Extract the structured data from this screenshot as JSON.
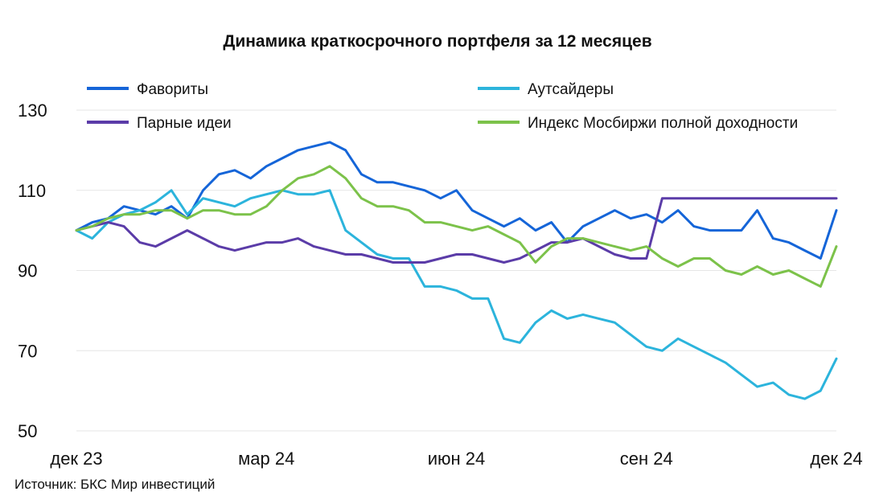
{
  "title": "Динамика краткосрочного портфеля за 12 месяцев",
  "source": "Источник: БКС Мир инвестиций",
  "colors": {
    "favorites": "#1565d8",
    "outsiders": "#2cb4dc",
    "pairs": "#5b3ca8",
    "index": "#7cc24a",
    "grid": "#e6e6e6"
  },
  "chart_data": {
    "type": "line",
    "title": "Динамика краткосрочного портфеля за 12 месяцев",
    "xlabel": "",
    "ylabel": "",
    "ylim": [
      50,
      130
    ],
    "yticks": [
      50,
      70,
      90,
      110,
      130
    ],
    "x_ticks": [
      "дек 23",
      "мар 24",
      "июн 24",
      "сен 24",
      "дек 24"
    ],
    "grid": true,
    "legend_position": "top",
    "legend": [
      "Фавориты",
      "Аутсайдеры",
      "Парные идеи",
      "Индекс Мосбиржи полной доходности"
    ],
    "x": [
      0,
      0.25,
      0.5,
      0.75,
      1,
      1.25,
      1.5,
      1.75,
      2,
      2.25,
      2.5,
      2.75,
      3,
      3.25,
      3.5,
      3.75,
      4,
      4.25,
      4.5,
      4.75,
      5,
      5.25,
      5.5,
      5.75,
      6,
      6.25,
      6.5,
      6.75,
      7,
      7.25,
      7.5,
      7.75,
      8,
      8.25,
      8.5,
      8.75,
      9,
      9.25,
      9.5,
      9.75,
      10,
      10.25,
      10.5,
      10.75,
      11,
      11.25,
      11.5,
      11.75,
      12
    ],
    "series": [
      {
        "name": "Фавориты",
        "color_key": "favorites",
        "values": [
          100,
          102,
          103,
          106,
          105,
          104,
          106,
          103,
          110,
          114,
          115,
          113,
          116,
          118,
          120,
          121,
          122,
          120,
          114,
          112,
          112,
          111,
          110,
          108,
          110,
          105,
          103,
          101,
          103,
          100,
          102,
          97,
          101,
          103,
          105,
          103,
          104,
          102,
          105,
          101,
          100,
          100,
          100,
          105,
          98,
          97,
          95,
          93,
          105
        ]
      },
      {
        "name": "Аутсайдеры",
        "color_key": "outsiders",
        "values": [
          100,
          98,
          102,
          104,
          105,
          107,
          110,
          104,
          108,
          107,
          106,
          108,
          109,
          110,
          109,
          109,
          110,
          100,
          97,
          94,
          93,
          93,
          86,
          86,
          85,
          83,
          83,
          73,
          72,
          77,
          80,
          78,
          79,
          78,
          77,
          74,
          71,
          70,
          73,
          71,
          69,
          67,
          64,
          61,
          62,
          59,
          58,
          60,
          68
        ]
      },
      {
        "name": "Парные идеи",
        "color_key": "pairs",
        "values": [
          100,
          101,
          102,
          101,
          97,
          96,
          98,
          100,
          98,
          96,
          95,
          96,
          97,
          97,
          98,
          96,
          95,
          94,
          94,
          93,
          92,
          92,
          92,
          93,
          94,
          94,
          93,
          92,
          93,
          95,
          97,
          97,
          98,
          96,
          94,
          93,
          93,
          108,
          108,
          108,
          108,
          108,
          108,
          108,
          108,
          108,
          108,
          108,
          108
        ]
      },
      {
        "name": "Индекс Мосбиржи полной доходности",
        "color_key": "index",
        "values": [
          100,
          101,
          103,
          104,
          104,
          105,
          105,
          103,
          105,
          105,
          104,
          104,
          106,
          110,
          113,
          114,
          116,
          113,
          108,
          106,
          106,
          105,
          102,
          102,
          101,
          100,
          101,
          99,
          97,
          92,
          96,
          98,
          98,
          97,
          96,
          95,
          96,
          93,
          91,
          93,
          93,
          90,
          89,
          91,
          89,
          90,
          88,
          86,
          96
        ]
      }
    ]
  }
}
